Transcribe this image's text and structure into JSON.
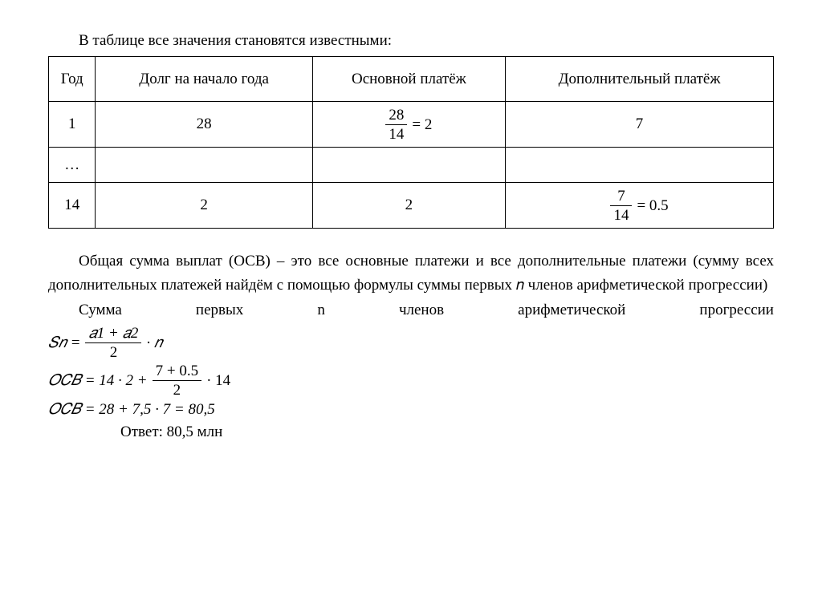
{
  "intro": "В таблице все значения становятся известными:",
  "table": {
    "headers": [
      "Год",
      "Долг на начало года",
      "Основной платёж",
      "Дополнительный платёж"
    ],
    "rows": [
      {
        "year": "1",
        "debt": "28",
        "principal": {
          "type": "frac-eq",
          "num": "28",
          "den": "14",
          "eq": "= 2"
        },
        "extra": "7"
      },
      {
        "year": "…",
        "debt": "",
        "principal": "",
        "extra": ""
      },
      {
        "year": "14",
        "debt": "2",
        "principal": "2",
        "extra": {
          "type": "frac-eq",
          "num": "7",
          "den": "14",
          "eq": "= 0.5"
        }
      }
    ]
  },
  "paragraph1": "Общая сумма выплат (ОСВ) – это все основные платежи и все дополнительные платежи (сумму всех дополнительных платежей найдём с помощью формулы суммы первых 𝑛 членов арифметической прогрессии)",
  "paragraph2_words": [
    "Сумма",
    "первых",
    "n",
    "членов",
    "арифметической",
    "прогрессии"
  ],
  "formula_sn": {
    "lhs": "𝑆𝑛 =",
    "num": "𝑎1 + 𝑎2",
    "den": "2",
    "tail": "· 𝑛"
  },
  "formula_ocb1": {
    "lhs": "𝑂𝐶𝐵 = 14  · 2 +",
    "num": "7 + 0.5",
    "den": "2",
    "tail": "· 14"
  },
  "formula_ocb2": "𝑂𝐶𝐵 = 28 + 7,5 · 7 = 80,5",
  "answer": "Ответ: 80,5 млн"
}
